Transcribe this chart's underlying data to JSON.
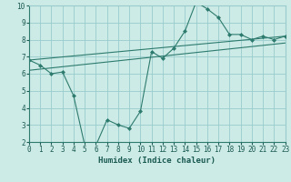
{
  "xlabel": "Humidex (Indice chaleur)",
  "ylabel": "",
  "background_color": "#cceae6",
  "grid_color": "#99cccc",
  "line_color": "#2d7b6e",
  "x_min": 0,
  "x_max": 23,
  "y_min": 2,
  "y_max": 10,
  "line1_x": [
    0,
    1,
    2,
    3,
    4,
    5,
    6,
    7,
    8,
    9,
    10,
    11,
    12,
    13,
    14,
    15,
    16,
    17,
    18,
    19,
    20,
    21,
    22,
    23
  ],
  "line1_y": [
    6.8,
    6.5,
    6.0,
    6.1,
    4.7,
    1.8,
    1.8,
    3.3,
    3.0,
    2.8,
    3.8,
    7.3,
    6.9,
    7.5,
    8.5,
    10.2,
    9.8,
    9.3,
    8.3,
    8.3,
    8.0,
    8.2,
    8.0,
    8.2
  ],
  "line2_x": [
    0,
    23
  ],
  "line2_y": [
    6.8,
    8.2
  ],
  "line3_x": [
    0,
    23
  ],
  "line3_y": [
    6.2,
    7.8
  ]
}
